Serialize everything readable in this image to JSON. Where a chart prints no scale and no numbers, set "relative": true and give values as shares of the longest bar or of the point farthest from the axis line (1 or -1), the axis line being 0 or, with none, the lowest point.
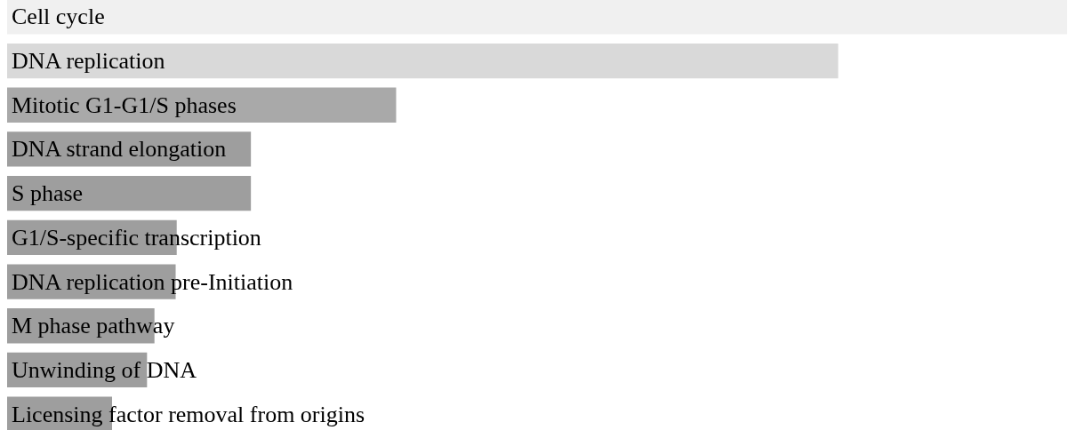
{
  "chart_data": {
    "type": "bar",
    "orientation": "horizontal",
    "relative": true,
    "categories": [
      "Cell cycle",
      "DNA replication",
      "Mitotic G1-G1/S phases",
      "DNA strand elongation",
      "S phase",
      "G1/S-specific transcription",
      "DNA replication pre-Initiation",
      "M phase pathway",
      "Unwinding of DNA",
      "Licensing factor removal from origins"
    ],
    "values": [
      1,
      0.784,
      0.367,
      0.23,
      0.23,
      0.16,
      0.159,
      0.139,
      0.132,
      0.099
    ],
    "colors": [
      "#f0f0f0",
      "#d9d9d9",
      "#a9a9a9",
      "#9e9e9e",
      "#9e9e9e",
      "#9e9e9e",
      "#9e9e9e",
      "#9e9e9e",
      "#9e9e9e",
      "#9e9e9e"
    ],
    "data_labels": false
  }
}
